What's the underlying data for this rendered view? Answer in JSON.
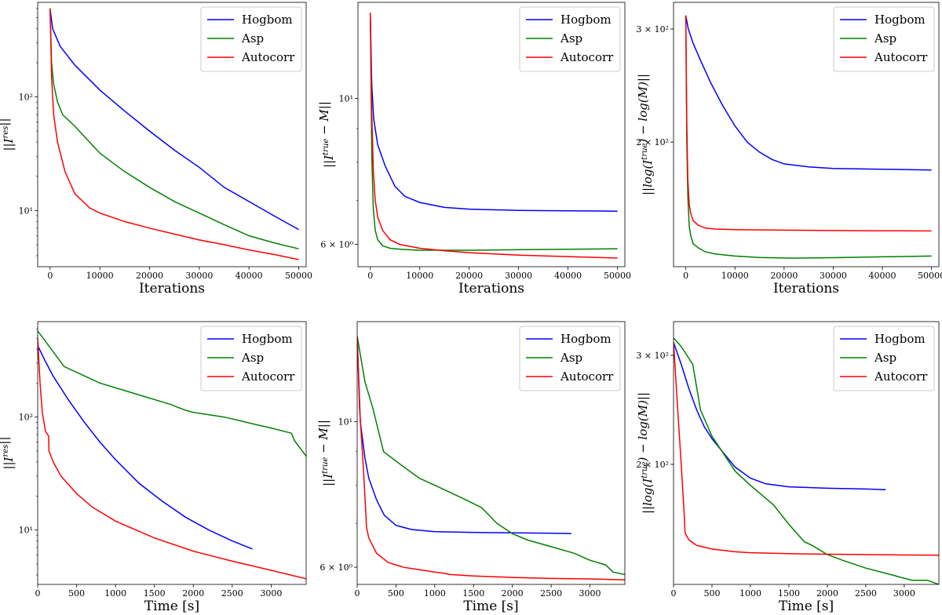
{
  "colors": {
    "Hogbom": "#0000ff",
    "Asp": "#008000",
    "Autocorr": "#ff0000"
  },
  "chart_data": [
    {
      "type": "line",
      "yscale": "log",
      "xlabel": "Iterations",
      "ylabel": "||I^res||",
      "xlim": [
        -2500,
        51500
      ],
      "ylim": [
        3.2,
        680
      ],
      "xticks": [
        0,
        10000,
        20000,
        30000,
        40000,
        50000
      ],
      "xtick_labels": [
        "0",
        "10000",
        "20000",
        "30000",
        "40000",
        "50000"
      ],
      "yticks": [
        10,
        100
      ],
      "ytick_labels": [
        "10¹",
        "10²"
      ],
      "legend": [
        "Hogbom",
        "Asp",
        "Autocorr"
      ],
      "legend_position": "top-right",
      "series": [
        {
          "name": "Hogbom",
          "x": [
            0,
            500,
            2000,
            5000,
            10000,
            15000,
            20000,
            25000,
            30000,
            35000,
            40000,
            45000,
            50000
          ],
          "y": [
            600,
            400,
            280,
            190,
            115,
            75,
            50,
            34,
            24,
            16,
            12,
            9,
            6.8
          ]
        },
        {
          "name": "Asp",
          "x": [
            0,
            300,
            700,
            1500,
            2500,
            5000,
            10000,
            15000,
            20000,
            25000,
            30000,
            35000,
            40000,
            45000,
            50000
          ],
          "y": [
            600,
            200,
            130,
            90,
            70,
            55,
            32,
            22,
            16,
            12,
            9.5,
            7.5,
            6,
            5.2,
            4.6
          ]
        },
        {
          "name": "Autocorr",
          "x": [
            0,
            300,
            700,
            1500,
            3000,
            5000,
            8000,
            10000,
            15000,
            20000,
            25000,
            30000,
            35000,
            40000,
            45000,
            50000
          ],
          "y": [
            600,
            150,
            70,
            40,
            22,
            14,
            10.5,
            9.5,
            8,
            7,
            6.2,
            5.5,
            5,
            4.5,
            4.1,
            3.7
          ]
        }
      ]
    },
    {
      "type": "line",
      "yscale": "log",
      "xlabel": "Iterations",
      "ylabel": "||I^true − M||",
      "xlim": [
        -2500,
        51500
      ],
      "ylim": [
        5.55,
        14
      ],
      "xticks": [
        0,
        10000,
        20000,
        30000,
        40000,
        50000
      ],
      "xtick_labels": [
        "0",
        "10000",
        "20000",
        "30000",
        "40000",
        "50000"
      ],
      "yticks": [
        6,
        10
      ],
      "ytick_labels": [
        "6 × 10⁰",
        "10¹"
      ],
      "legend": [
        "Hogbom",
        "Asp",
        "Autocorr"
      ],
      "legend_position": "top-right",
      "series": [
        {
          "name": "Hogbom",
          "x": [
            0,
            300,
            700,
            1500,
            3000,
            5000,
            7000,
            10000,
            15000,
            20000,
            30000,
            40000,
            50000
          ],
          "y": [
            13.5,
            10.5,
            9.3,
            8.5,
            7.9,
            7.35,
            7.1,
            6.95,
            6.83,
            6.79,
            6.76,
            6.75,
            6.74
          ]
        },
        {
          "name": "Asp",
          "x": [
            0,
            300,
            600,
            1000,
            1500,
            2500,
            4000,
            6000,
            10000,
            15000,
            20000,
            30000,
            40000,
            50000
          ],
          "y": [
            13.5,
            8.2,
            6.8,
            6.3,
            6.1,
            5.97,
            5.92,
            5.9,
            5.88,
            5.88,
            5.88,
            5.89,
            5.9,
            5.91
          ]
        },
        {
          "name": "Autocorr",
          "x": [
            0,
            300,
            600,
            1000,
            1500,
            2500,
            4000,
            6000,
            10000,
            15000,
            20000,
            30000,
            40000,
            50000
          ],
          "y": [
            13.5,
            9.5,
            7.8,
            7.0,
            6.6,
            6.3,
            6.1,
            6.0,
            5.92,
            5.87,
            5.83,
            5.78,
            5.75,
            5.72
          ]
        }
      ]
    },
    {
      "type": "line",
      "yscale": "log",
      "xlabel": "Iterations",
      "ylabel": "||log(I^true) − log(M)||",
      "xlim": [
        -2500,
        51500
      ],
      "ylim": [
        128,
        330
      ],
      "xticks": [
        0,
        10000,
        20000,
        30000,
        40000,
        50000
      ],
      "xtick_labels": [
        "0",
        "10000",
        "20000",
        "30000",
        "40000",
        "50000"
      ],
      "yticks": [
        200,
        300
      ],
      "ytick_labels": [
        "2 × 10²",
        "3 × 10²"
      ],
      "legend": [
        "Hogbom",
        "Asp",
        "Autocorr"
      ],
      "legend_position": "top-right",
      "series": [
        {
          "name": "Hogbom",
          "x": [
            0,
            500,
            1500,
            3000,
            5000,
            7500,
            10000,
            12500,
            15000,
            17500,
            20000,
            25000,
            30000,
            40000,
            50000
          ],
          "y": [
            315,
            300,
            285,
            268,
            248,
            228,
            212,
            200,
            193,
            188,
            185,
            183,
            182,
            181.5,
            181
          ]
        },
        {
          "name": "Asp",
          "x": [
            0,
            200,
            400,
            700,
            1000,
            1500,
            2500,
            4000,
            6000,
            10000,
            15000,
            22000,
            30000,
            40000,
            50000
          ],
          "y": [
            315,
            200,
            165,
            148,
            143,
            139,
            137,
            135,
            134,
            133,
            132.3,
            132,
            132.2,
            132.6,
            133
          ]
        },
        {
          "name": "Autocorr",
          "x": [
            0,
            200,
            400,
            700,
            1000,
            1500,
            2500,
            4000,
            6000,
            10000,
            20000,
            30000,
            40000,
            50000
          ],
          "y": [
            315,
            215,
            175,
            160,
            155,
            151,
            148.5,
            147,
            146.5,
            146.2,
            145.9,
            145.7,
            145.6,
            145.5
          ]
        }
      ]
    },
    {
      "type": "line",
      "yscale": "log",
      "xlabel": "Time [s]",
      "ylabel": "||I^res||",
      "xlim": [
        0,
        3450
      ],
      "ylim": [
        3.3,
        700
      ],
      "xticks": [
        0,
        500,
        1000,
        1500,
        2000,
        2500,
        3000
      ],
      "xtick_labels": [
        "0",
        "500",
        "1000",
        "1500",
        "2000",
        "2500",
        "3000"
      ],
      "yticks": [
        10,
        100
      ],
      "ytick_labels": [
        "10¹",
        "10²"
      ],
      "legend": [
        "Hogbom",
        "Asp",
        "Autocorr"
      ],
      "legend_position": "top-right",
      "series": [
        {
          "name": "Hogbom",
          "x": [
            0,
            100,
            200,
            400,
            600,
            800,
            1000,
            1300,
            1600,
            1900,
            2200,
            2500,
            2760
          ],
          "y": [
            430,
            310,
            230,
            140,
            90,
            60,
            42,
            26,
            18,
            13,
            10,
            8,
            6.8
          ]
        },
        {
          "name": "Asp",
          "x": [
            0,
            340,
            800,
            1200,
            1700,
            1800,
            1900,
            2000,
            2400,
            2800,
            3000,
            3260,
            3300,
            3450
          ],
          "y": [
            580,
            280,
            200,
            165,
            130,
            122,
            115,
            110,
            100,
            86,
            80,
            72,
            62,
            45
          ]
        },
        {
          "name": "Autocorr",
          "x": [
            0,
            30,
            60,
            100,
            140,
            145,
            200,
            300,
            500,
            700,
            1000,
            1500,
            2000,
            2500,
            3000,
            3450
          ],
          "y": [
            500,
            200,
            110,
            75,
            68,
            50,
            40,
            30,
            21,
            16,
            12,
            8.5,
            6.5,
            5.3,
            4.4,
            3.7
          ]
        }
      ]
    },
    {
      "type": "line",
      "yscale": "log",
      "xlabel": "Time [s]",
      "ylabel": "||I^true − M||",
      "xlim": [
        0,
        3450
      ],
      "ylim": [
        5.65,
        14.2
      ],
      "xticks": [
        0,
        500,
        1000,
        1500,
        2000,
        2500,
        3000
      ],
      "xtick_labels": [
        "0",
        "500",
        "1000",
        "1500",
        "2000",
        "2500",
        "3000"
      ],
      "yticks": [
        6,
        10
      ],
      "ytick_labels": [
        "6 × 10⁰",
        "10¹"
      ],
      "legend": [
        "Hogbom",
        "Asp",
        "Autocorr"
      ],
      "legend_position": "top-right",
      "series": [
        {
          "name": "Hogbom",
          "x": [
            0,
            40,
            100,
            150,
            250,
            350,
            500,
            700,
            1000,
            1500,
            2000,
            2500,
            2760
          ],
          "y": [
            13.5,
            10,
            8.8,
            8.2,
            7.6,
            7.2,
            6.95,
            6.85,
            6.8,
            6.78,
            6.77,
            6.76,
            6.75
          ]
        },
        {
          "name": "Asp",
          "x": [
            0,
            100,
            200,
            340,
            560,
            800,
            1000,
            1200,
            1400,
            1600,
            1700,
            1800,
            2000,
            2200,
            2500,
            2800,
            3000,
            3200,
            3300,
            3450
          ],
          "y": [
            13.5,
            11.5,
            10.5,
            9.0,
            8.6,
            8.2,
            8.0,
            7.8,
            7.6,
            7.4,
            7.2,
            7.0,
            6.75,
            6.6,
            6.45,
            6.3,
            6.15,
            6.05,
            5.9,
            5.85
          ]
        },
        {
          "name": "Autocorr",
          "x": [
            0,
            30,
            80,
            110,
            120,
            150,
            250,
            400,
            600,
            800,
            1000,
            1100,
            1200,
            1500,
            2000,
            2500,
            3000,
            3450
          ],
          "y": [
            13.5,
            10.5,
            8.5,
            7.3,
            6.9,
            6.65,
            6.3,
            6.1,
            6.0,
            5.95,
            5.9,
            5.88,
            5.85,
            5.82,
            5.79,
            5.77,
            5.76,
            5.74
          ]
        }
      ]
    },
    {
      "type": "line",
      "yscale": "log",
      "xlabel": "Time [s]",
      "ylabel": "||log(I^true) − log(M)||",
      "xlim": [
        0,
        3450
      ],
      "ylim": [
        128,
        340
      ],
      "xticks": [
        0,
        500,
        1000,
        1500,
        2000,
        2500,
        3000
      ],
      "xtick_labels": [
        "0",
        "500",
        "1000",
        "1500",
        "2000",
        "2500",
        "3000"
      ],
      "yticks": [
        200,
        300
      ],
      "ytick_labels": [
        "2 × 10²",
        "3 × 10²"
      ],
      "legend": [
        "Hogbom",
        "Asp",
        "Autocorr"
      ],
      "legend_position": "top-right",
      "series": [
        {
          "name": "Hogbom",
          "x": [
            0,
            100,
            200,
            300,
            400,
            500,
            700,
            800,
            1000,
            1200,
            1500,
            2000,
            2500,
            2760
          ],
          "y": [
            315,
            290,
            265,
            245,
            230,
            220,
            205,
            198,
            190,
            186,
            184,
            183,
            182.5,
            182
          ]
        },
        {
          "name": "Asp",
          "x": [
            0,
            100,
            250,
            350,
            500,
            800,
            1000,
            1300,
            1500,
            1700,
            1800,
            2000,
            2200,
            2500,
            2800,
            3000,
            3100,
            3300,
            3450
          ],
          "y": [
            320,
            310,
            290,
            245,
            222,
            195,
            185,
            172,
            160,
            150,
            148,
            143,
            140,
            136,
            133,
            131,
            130,
            130,
            128
          ]
        },
        {
          "name": "Autocorr",
          "x": [
            0,
            50,
            100,
            140,
            150,
            200,
            300,
            500,
            800,
            1000,
            1500,
            2000,
            2500,
            3000,
            3450
          ],
          "y": [
            315,
            250,
            200,
            165,
            155,
            151,
            148,
            146,
            144.5,
            144,
            143.5,
            143.2,
            143,
            142.8,
            142.7
          ]
        }
      ]
    }
  ]
}
